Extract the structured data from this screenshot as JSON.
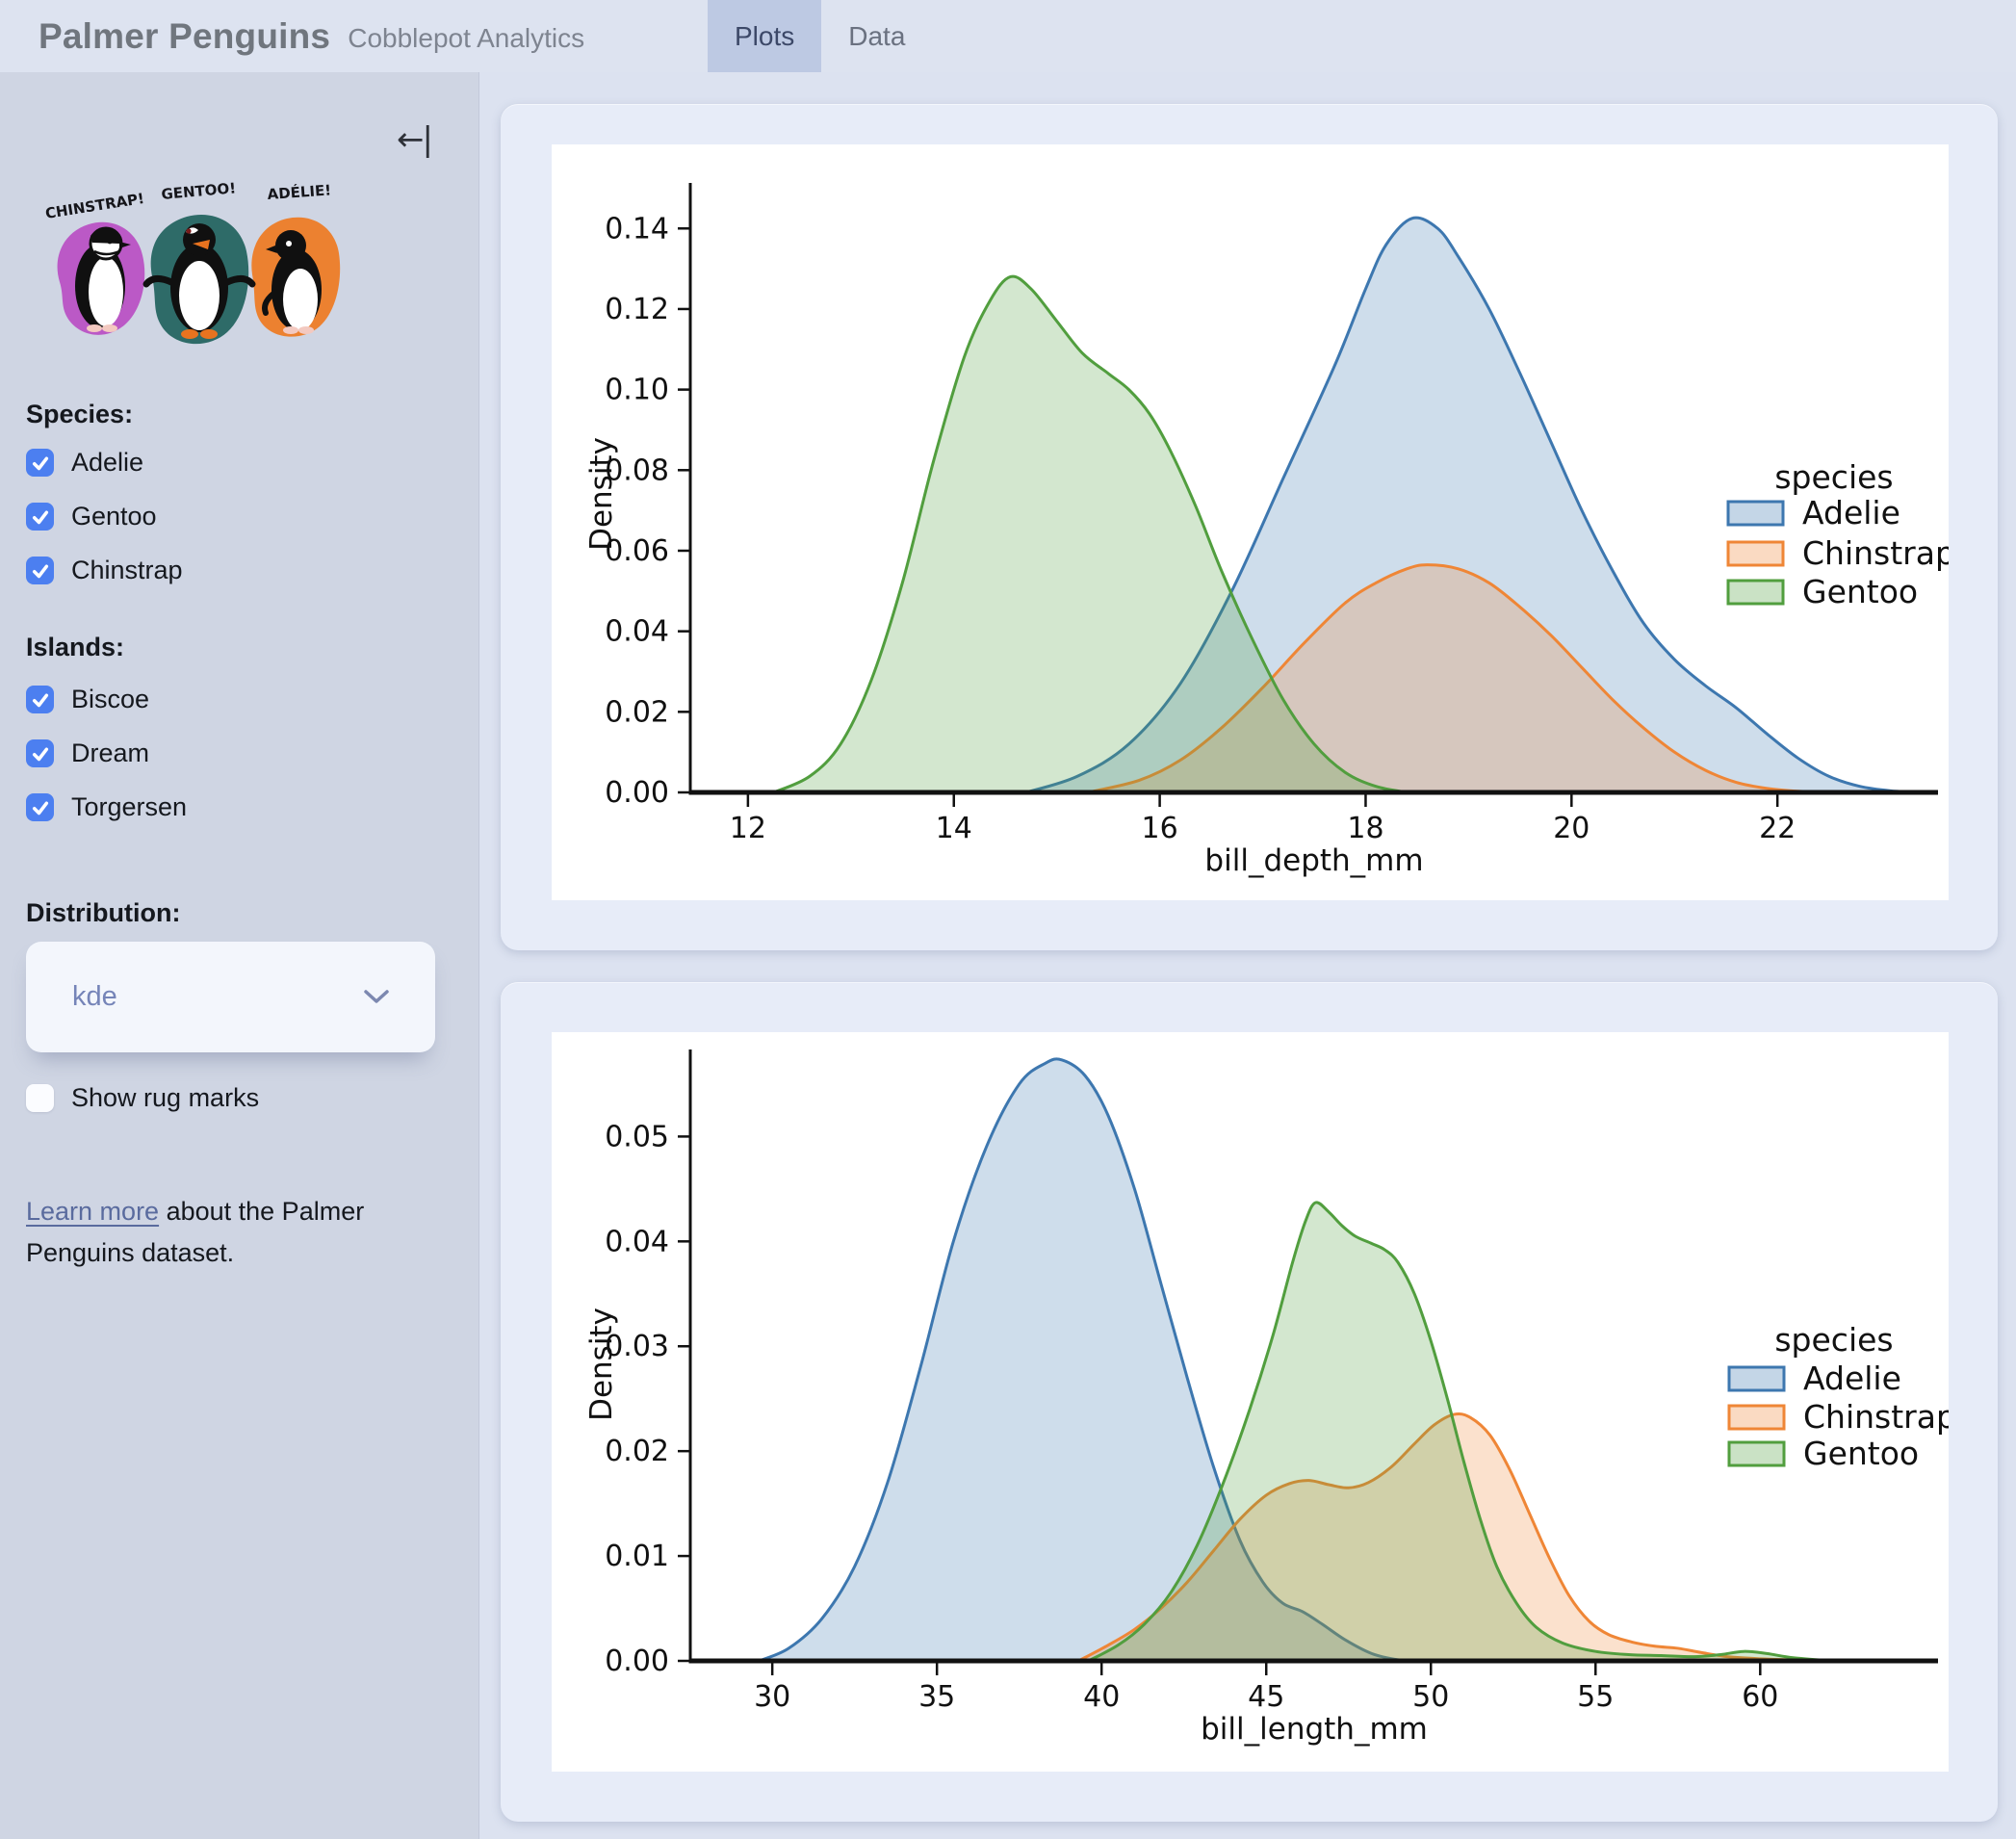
{
  "header": {
    "title": "Palmer Penguins",
    "subtitle": "Cobblepot Analytics",
    "tabs": [
      {
        "label": "Plots",
        "active": true
      },
      {
        "label": "Data",
        "active": false
      }
    ]
  },
  "sidebar": {
    "collapse_icon": "←|",
    "illustration_captions": [
      "CHINSTRAP!",
      "GENTOO!",
      "ADÉLIE!"
    ],
    "species": {
      "heading": "Species:",
      "options": [
        {
          "label": "Adelie",
          "checked": true
        },
        {
          "label": "Gentoo",
          "checked": true
        },
        {
          "label": "Chinstrap",
          "checked": true
        }
      ]
    },
    "islands": {
      "heading": "Islands:",
      "options": [
        {
          "label": "Biscoe",
          "checked": true
        },
        {
          "label": "Dream",
          "checked": true
        },
        {
          "label": "Torgersen",
          "checked": true
        }
      ]
    },
    "distribution": {
      "heading": "Distribution:",
      "selected": "kde"
    },
    "rug": {
      "label": "Show rug marks",
      "checked": false
    },
    "footer": {
      "link_text": "Learn more",
      "rest_text": " about the Palmer Penguins dataset."
    }
  },
  "colors": {
    "checkbox_accent": "#4c7ff0",
    "link": "#5a6b9e",
    "dropdown_text": "#7584b8",
    "active_tab_bg": "#bdc9e3",
    "adelie": "#3d77af",
    "chinstrap": "#ef8636",
    "gentoo": "#519e3e"
  },
  "chart_data": [
    {
      "type": "area",
      "kind": "kde",
      "xlabel": "bill_depth_mm",
      "ylabel": "Density",
      "xlim": [
        11.44,
        23.56
      ],
      "ylim": [
        0,
        0.1513
      ],
      "xticks": [
        12,
        14,
        16,
        18,
        20,
        22
      ],
      "yticks": [
        0,
        0.02,
        0.04,
        0.06,
        0.08,
        0.1,
        0.12,
        0.14
      ],
      "ytick_labels": [
        "0.00",
        "0.02",
        "0.04",
        "0.06",
        "0.08",
        "0.10",
        "0.12",
        "0.14"
      ],
      "legend": {
        "title": "species",
        "entries": [
          {
            "label": "Adelie",
            "color": "#3d77af"
          },
          {
            "label": "Chinstrap",
            "color": "#ef8636"
          },
          {
            "label": "Gentoo",
            "color": "#519e3e"
          }
        ]
      },
      "series": [
        {
          "name": "Adelie",
          "color": "#3d77af",
          "points": [
            [
              14.7,
              0
            ],
            [
              15.2,
              0.004
            ],
            [
              15.7,
              0.012
            ],
            [
              16.2,
              0.027
            ],
            [
              16.7,
              0.05
            ],
            [
              17.2,
              0.078
            ],
            [
              17.7,
              0.106
            ],
            [
              18.0,
              0.125
            ],
            [
              18.2,
              0.136
            ],
            [
              18.45,
              0.1425
            ],
            [
              18.7,
              0.14
            ],
            [
              18.9,
              0.133
            ],
            [
              19.2,
              0.12
            ],
            [
              19.5,
              0.104
            ],
            [
              19.8,
              0.087
            ],
            [
              20.1,
              0.07
            ],
            [
              20.4,
              0.055
            ],
            [
              20.7,
              0.042
            ],
            [
              21.0,
              0.033
            ],
            [
              21.3,
              0.0265
            ],
            [
              21.6,
              0.021
            ],
            [
              21.9,
              0.0145
            ],
            [
              22.2,
              0.0085
            ],
            [
              22.5,
              0.004
            ],
            [
              22.8,
              0.0015
            ],
            [
              23.1,
              0.0004
            ],
            [
              23.4,
              0
            ]
          ]
        },
        {
          "name": "Chinstrap",
          "color": "#ef8636",
          "points": [
            [
              15.3,
              0
            ],
            [
              15.8,
              0.003
            ],
            [
              16.2,
              0.008
            ],
            [
              16.6,
              0.016
            ],
            [
              17.0,
              0.026
            ],
            [
              17.4,
              0.037
            ],
            [
              17.8,
              0.047
            ],
            [
              18.1,
              0.052
            ],
            [
              18.4,
              0.0555
            ],
            [
              18.6,
              0.0565
            ],
            [
              18.9,
              0.0555
            ],
            [
              19.2,
              0.052
            ],
            [
              19.5,
              0.046
            ],
            [
              19.8,
              0.039
            ],
            [
              20.1,
              0.031
            ],
            [
              20.4,
              0.023
            ],
            [
              20.7,
              0.016
            ],
            [
              21.0,
              0.01
            ],
            [
              21.3,
              0.0055
            ],
            [
              21.6,
              0.0025
            ],
            [
              21.9,
              0.001
            ],
            [
              22.2,
              0.0003
            ],
            [
              22.5,
              0
            ]
          ]
        },
        {
          "name": "Gentoo",
          "color": "#519e3e",
          "points": [
            [
              12.25,
              0
            ],
            [
              12.6,
              0.004
            ],
            [
              12.9,
              0.012
            ],
            [
              13.2,
              0.028
            ],
            [
              13.5,
              0.052
            ],
            [
              13.8,
              0.082
            ],
            [
              14.1,
              0.108
            ],
            [
              14.35,
              0.122
            ],
            [
              14.55,
              0.128
            ],
            [
              14.75,
              0.125
            ],
            [
              15.0,
              0.117
            ],
            [
              15.25,
              0.109
            ],
            [
              15.5,
              0.104
            ],
            [
              15.7,
              0.1
            ],
            [
              15.9,
              0.094
            ],
            [
              16.1,
              0.085
            ],
            [
              16.35,
              0.071
            ],
            [
              16.6,
              0.055
            ],
            [
              16.9,
              0.038
            ],
            [
              17.2,
              0.023
            ],
            [
              17.5,
              0.012
            ],
            [
              17.8,
              0.005
            ],
            [
              18.1,
              0.0015
            ],
            [
              18.4,
              0
            ]
          ]
        }
      ]
    },
    {
      "type": "area",
      "kind": "kde",
      "xlabel": "bill_length_mm",
      "ylabel": "Density",
      "xlim": [
        27.51,
        65.4
      ],
      "ylim": [
        0,
        0.0583
      ],
      "xticks": [
        30,
        35,
        40,
        45,
        50,
        55,
        60
      ],
      "yticks": [
        0,
        0.01,
        0.02,
        0.03,
        0.04,
        0.05
      ],
      "ytick_labels": [
        "0.00",
        "0.01",
        "0.02",
        "0.03",
        "0.04",
        "0.05"
      ],
      "legend": {
        "title": "species",
        "entries": [
          {
            "label": "Adelie",
            "color": "#3d77af"
          },
          {
            "label": "Chinstrap",
            "color": "#ef8636"
          },
          {
            "label": "Gentoo",
            "color": "#519e3e"
          }
        ]
      },
      "series": [
        {
          "name": "Adelie",
          "color": "#3d77af",
          "points": [
            [
              29.6,
              0
            ],
            [
              30.5,
              0.0012
            ],
            [
              31.5,
              0.004
            ],
            [
              32.5,
              0.009
            ],
            [
              33.5,
              0.017
            ],
            [
              34.5,
              0.028
            ],
            [
              35.5,
              0.04
            ],
            [
              36.5,
              0.049
            ],
            [
              37.5,
              0.055
            ],
            [
              38.3,
              0.057
            ],
            [
              38.8,
              0.0573
            ],
            [
              39.5,
              0.0558
            ],
            [
              40.2,
              0.052
            ],
            [
              41.0,
              0.045
            ],
            [
              41.8,
              0.036
            ],
            [
              42.6,
              0.027
            ],
            [
              43.4,
              0.0185
            ],
            [
              44.2,
              0.0115
            ],
            [
              44.9,
              0.0075
            ],
            [
              45.5,
              0.0055
            ],
            [
              46.1,
              0.0047
            ],
            [
              46.7,
              0.0035
            ],
            [
              47.4,
              0.002
            ],
            [
              48.2,
              0.0007
            ],
            [
              49.0,
              0.0001
            ],
            [
              49.6,
              0
            ]
          ]
        },
        {
          "name": "Chinstrap",
          "color": "#ef8636",
          "points": [
            [
              39.3,
              0
            ],
            [
              40.2,
              0.0015
            ],
            [
              41.0,
              0.003
            ],
            [
              41.8,
              0.005
            ],
            [
              42.6,
              0.0075
            ],
            [
              43.4,
              0.0105
            ],
            [
              44.2,
              0.0135
            ],
            [
              45.0,
              0.0158
            ],
            [
              45.7,
              0.0169
            ],
            [
              46.3,
              0.0172
            ],
            [
              46.9,
              0.0168
            ],
            [
              47.5,
              0.0165
            ],
            [
              48.1,
              0.017
            ],
            [
              48.8,
              0.0185
            ],
            [
              49.5,
              0.0207
            ],
            [
              50.1,
              0.0225
            ],
            [
              50.7,
              0.0235
            ],
            [
              51.2,
              0.0232
            ],
            [
              51.8,
              0.0215
            ],
            [
              52.4,
              0.0182
            ],
            [
              53.0,
              0.014
            ],
            [
              53.6,
              0.0098
            ],
            [
              54.2,
              0.0062
            ],
            [
              54.8,
              0.0038
            ],
            [
              55.4,
              0.0025
            ],
            [
              56.1,
              0.0018
            ],
            [
              56.8,
              0.0014
            ],
            [
              57.5,
              0.0012
            ],
            [
              58.2,
              0.0008
            ],
            [
              59.0,
              0.0004
            ],
            [
              60.0,
              0.0002
            ],
            [
              61.0,
              0.0001
            ],
            [
              62.0,
              0
            ]
          ]
        },
        {
          "name": "Gentoo",
          "color": "#519e3e",
          "points": [
            [
              39.6,
              0
            ],
            [
              40.5,
              0.0015
            ],
            [
              41.3,
              0.0035
            ],
            [
              42.1,
              0.0065
            ],
            [
              42.9,
              0.011
            ],
            [
              43.7,
              0.017
            ],
            [
              44.5,
              0.024
            ],
            [
              45.2,
              0.031
            ],
            [
              45.8,
              0.038
            ],
            [
              46.2,
              0.042
            ],
            [
              46.5,
              0.0437
            ],
            [
              46.9,
              0.0428
            ],
            [
              47.3,
              0.0415
            ],
            [
              47.7,
              0.0405
            ],
            [
              48.2,
              0.0398
            ],
            [
              48.6,
              0.0392
            ],
            [
              49.0,
              0.038
            ],
            [
              49.5,
              0.035
            ],
            [
              50.0,
              0.0305
            ],
            [
              50.5,
              0.025
            ],
            [
              51.0,
              0.019
            ],
            [
              51.5,
              0.0135
            ],
            [
              52.0,
              0.009
            ],
            [
              52.6,
              0.0055
            ],
            [
              53.2,
              0.0032
            ],
            [
              54.0,
              0.0017
            ],
            [
              55.0,
              0.0009
            ],
            [
              56.0,
              0.0006
            ],
            [
              57.0,
              0.0005
            ],
            [
              58.0,
              0.0004
            ],
            [
              58.8,
              0.0006
            ],
            [
              59.5,
              0.0009
            ],
            [
              60.2,
              0.0007
            ],
            [
              61.0,
              0.0003
            ],
            [
              62.2,
              0
            ]
          ]
        }
      ]
    }
  ]
}
